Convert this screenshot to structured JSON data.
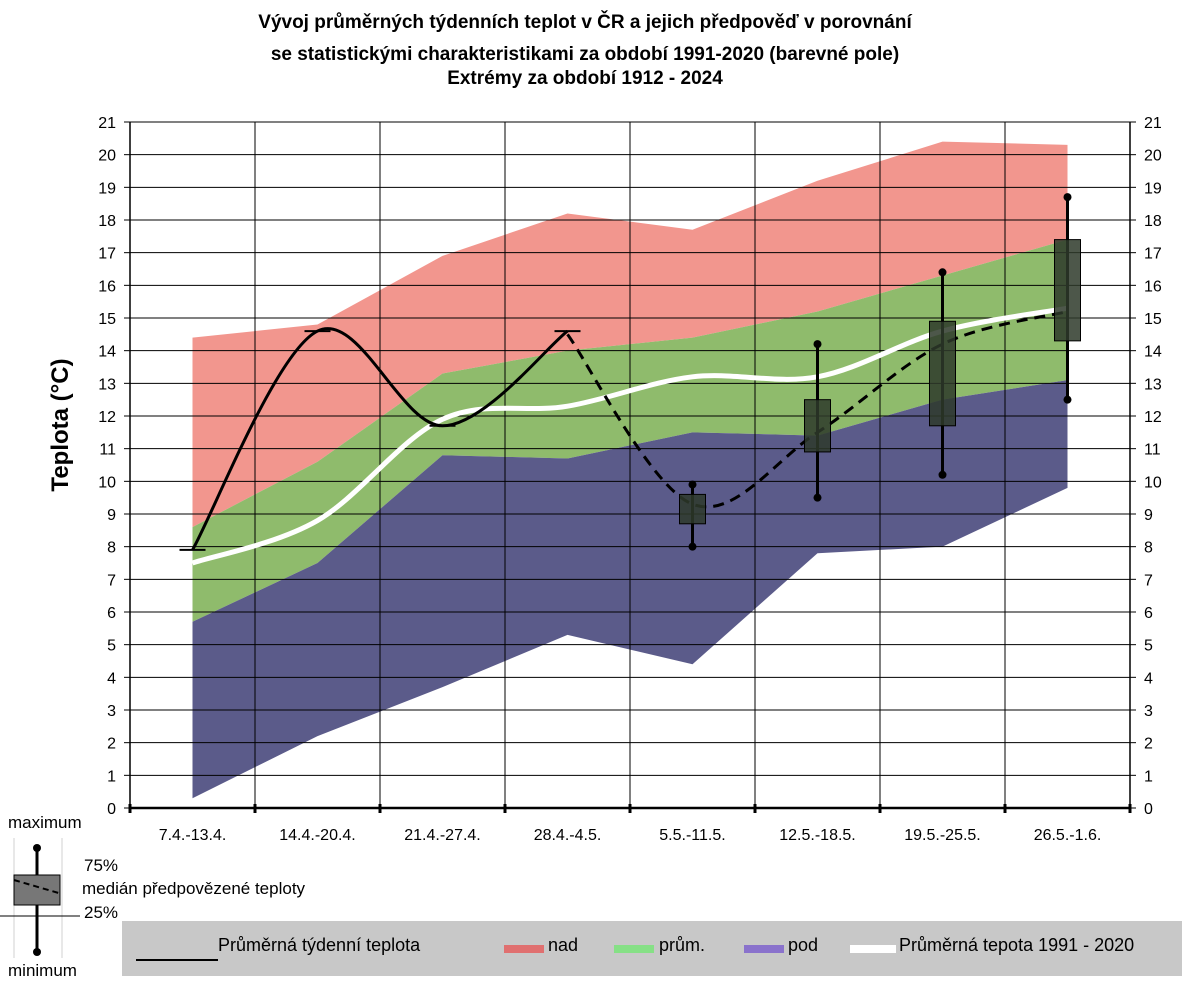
{
  "title_lines": [
    "Vývoj průměrných týdenních teplot v ČR a jejich předpověď v porovnání",
    "se statistickými charakteristikami za období 1991-2020 (barevné pole)",
    "Extrémy za období 1912 - 2024"
  ],
  "key": {
    "maximum": "maximum",
    "p75": "75%",
    "median": "medián předpovězené teploty",
    "p25": "25%",
    "minimum": "minimum"
  },
  "legend": {
    "weekly_avg": "Průměrná týdenní teplota",
    "nad": "nad",
    "prum": "prům.",
    "pod": "pod",
    "normal": "Průměrná tepota 1991 - 2020"
  },
  "colors": {
    "nad": "#f2968e",
    "prum": "#8fbb6c",
    "pod": "#5b5b8a",
    "legend_nad": "#e07070",
    "legend_prum": "#86e086",
    "legend_pod": "#8a72cc",
    "box": "#2e3a2a"
  },
  "chart_data": {
    "type": "area",
    "ylabel": "Teplota (°C)",
    "ylim": [
      0,
      21
    ],
    "yticks": [
      0,
      1,
      2,
      3,
      4,
      5,
      6,
      7,
      8,
      9,
      10,
      11,
      12,
      13,
      14,
      15,
      16,
      17,
      18,
      19,
      20,
      21
    ],
    "categories": [
      "7.4.-13.4.",
      "14.4.-20.4.",
      "21.4.-27.4.",
      "28.4.-4.5.",
      "5.5.-11.5.",
      "12.5.-18.5.",
      "19.5.-25.5.",
      "26.5.-1.6."
    ],
    "extreme_max": [
      14.4,
      14.8,
      16.9,
      18.2,
      17.7,
      19.2,
      20.4,
      20.3
    ],
    "upper_quantile": [
      8.6,
      10.6,
      13.3,
      14.0,
      14.4,
      15.2,
      16.3,
      17.4
    ],
    "lower_quantile": [
      5.7,
      7.5,
      10.8,
      10.7,
      11.5,
      11.4,
      12.5,
      13.1
    ],
    "extreme_min": [
      0.3,
      2.2,
      3.7,
      5.3,
      4.4,
      7.8,
      8.0,
      9.8
    ],
    "normal_1991_2020": [
      7.5,
      8.8,
      11.9,
      12.3,
      13.2,
      13.2,
      14.6,
      15.3
    ],
    "observed_weekly_avg": [
      7.9,
      14.6,
      11.7,
      14.6
    ],
    "forecast_median": [
      14.5,
      9.3,
      11.5,
      14.2,
      15.2
    ],
    "forecast_boxes": [
      {
        "category": "5.5.-11.5.",
        "min": 8.0,
        "q25": 8.7,
        "q75": 9.6,
        "max": 9.9
      },
      {
        "category": "12.5.-18.5.",
        "min": 9.5,
        "q25": 10.9,
        "q75": 12.5,
        "max": 14.2
      },
      {
        "category": "19.5.-25.5.",
        "min": 10.2,
        "q25": 11.7,
        "q75": 14.9,
        "max": 16.4
      },
      {
        "category": "26.5.-1.6.",
        "min": 12.5,
        "q25": 14.3,
        "q75": 17.4,
        "max": 18.7
      }
    ],
    "grid": true,
    "legend_position": "bottom"
  }
}
